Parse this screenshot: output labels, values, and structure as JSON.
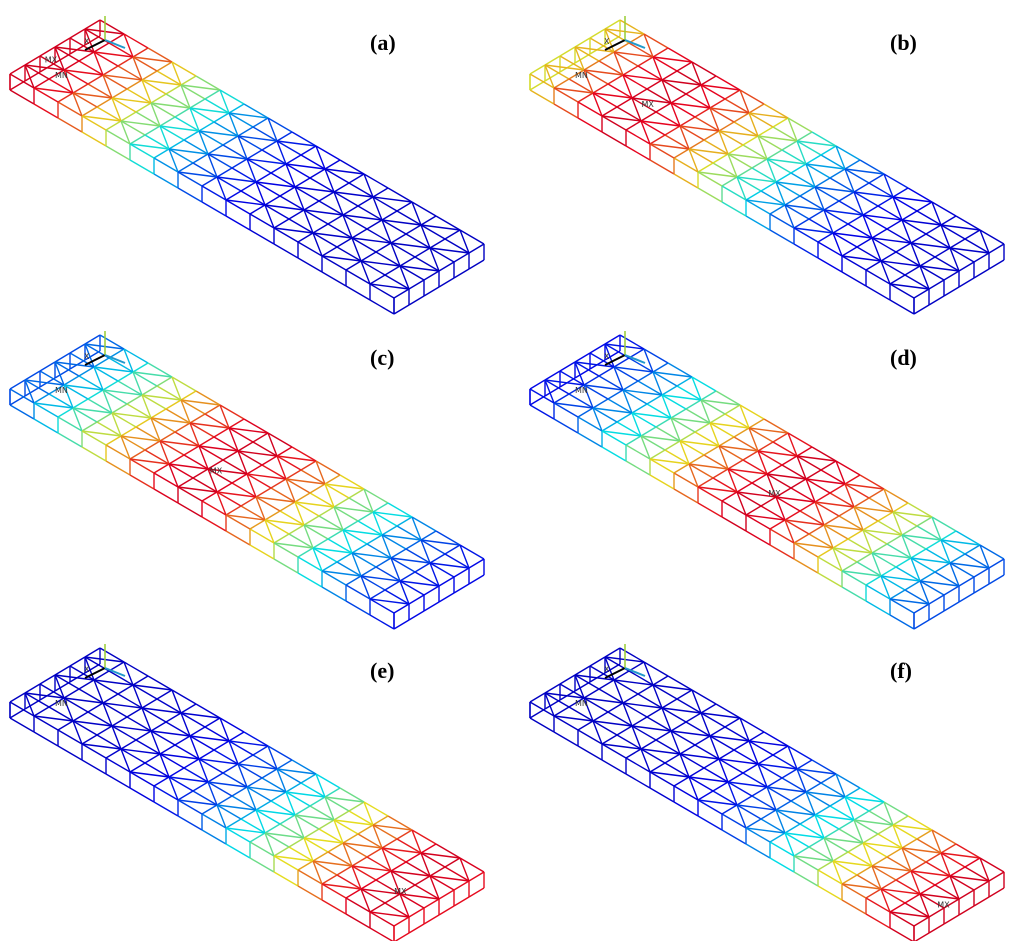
{
  "panels": [
    {
      "label": "(a)",
      "min_label": "MN",
      "max_label": "MX",
      "axis_label": "X"
    },
    {
      "label": "(b)",
      "min_label": "MN",
      "max_label": "MX",
      "axis_label": "X"
    },
    {
      "label": "(c)",
      "min_label": "MN",
      "max_label": "MX",
      "axis_label": "X"
    },
    {
      "label": "(d)",
      "min_label": "MN",
      "max_label": "MX",
      "axis_label": "X"
    },
    {
      "label": "(e)",
      "min_label": "MN",
      "max_label": "MX",
      "axis_label": "X"
    },
    {
      "label": "(f)",
      "min_label": "MN",
      "max_label": "MX",
      "axis_label": "X"
    }
  ]
}
